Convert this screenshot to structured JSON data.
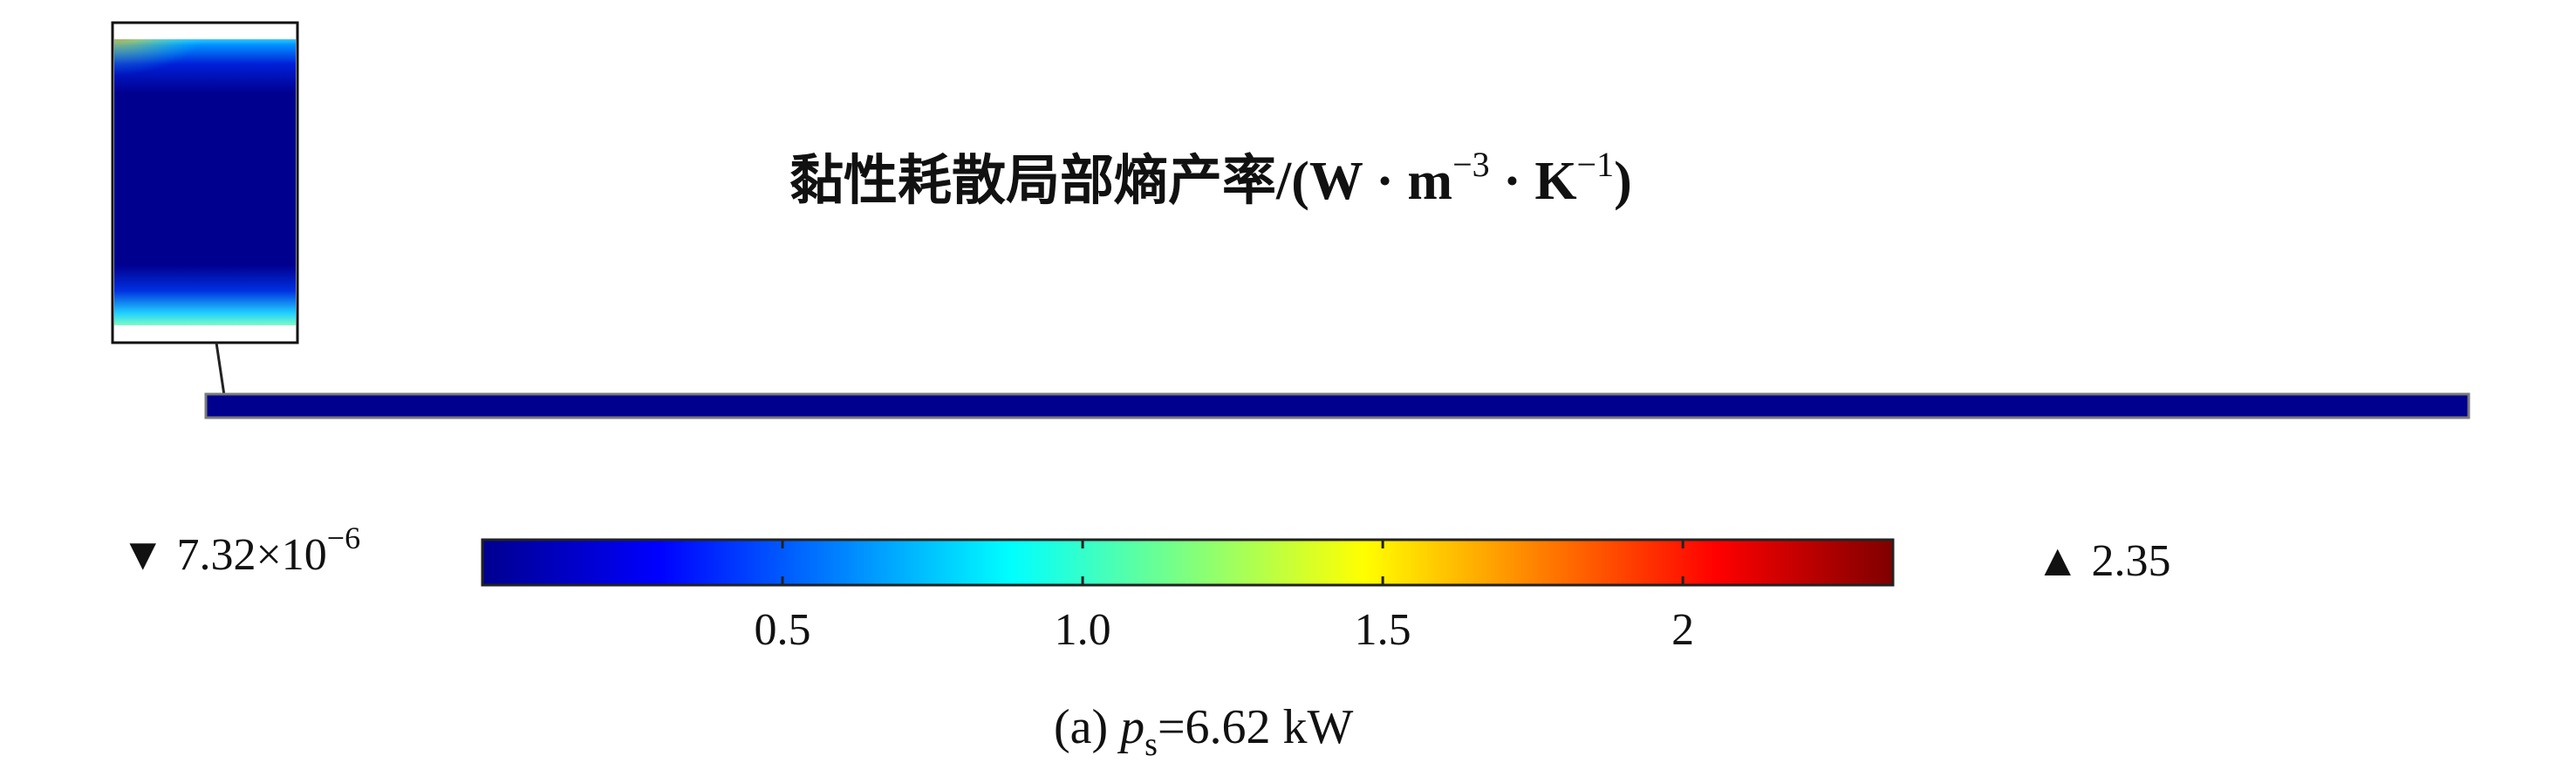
{
  "chart_data": {
    "type": "heatmap",
    "title_main": "黏性耗散局部熵产率/(W · m",
    "title_exp1": "−3",
    "title_mid": " · K",
    "title_exp2": "−1",
    "title_end": ")",
    "colorscale": [
      "#00008f",
      "#0000ff",
      "#007fff",
      "#00ffff",
      "#7fff7f",
      "#ffff00",
      "#ff7f00",
      "#ff0000",
      "#7f0000"
    ],
    "colorbar": {
      "min_label_prefix": "▼ 7.32×10",
      "min_label_exp": "−6",
      "max_label": "▲ 2.35",
      "min": 7.32e-06,
      "max": 2.35,
      "ticks": [
        0.5,
        1.0,
        1.5,
        2
      ],
      "tick_labels": [
        "0.5",
        "1.0",
        "1.5",
        "2"
      ]
    },
    "caption_prefix": "(a) ",
    "caption_var": "p",
    "caption_sub": "s",
    "caption_rest": "=6.62 kW"
  }
}
